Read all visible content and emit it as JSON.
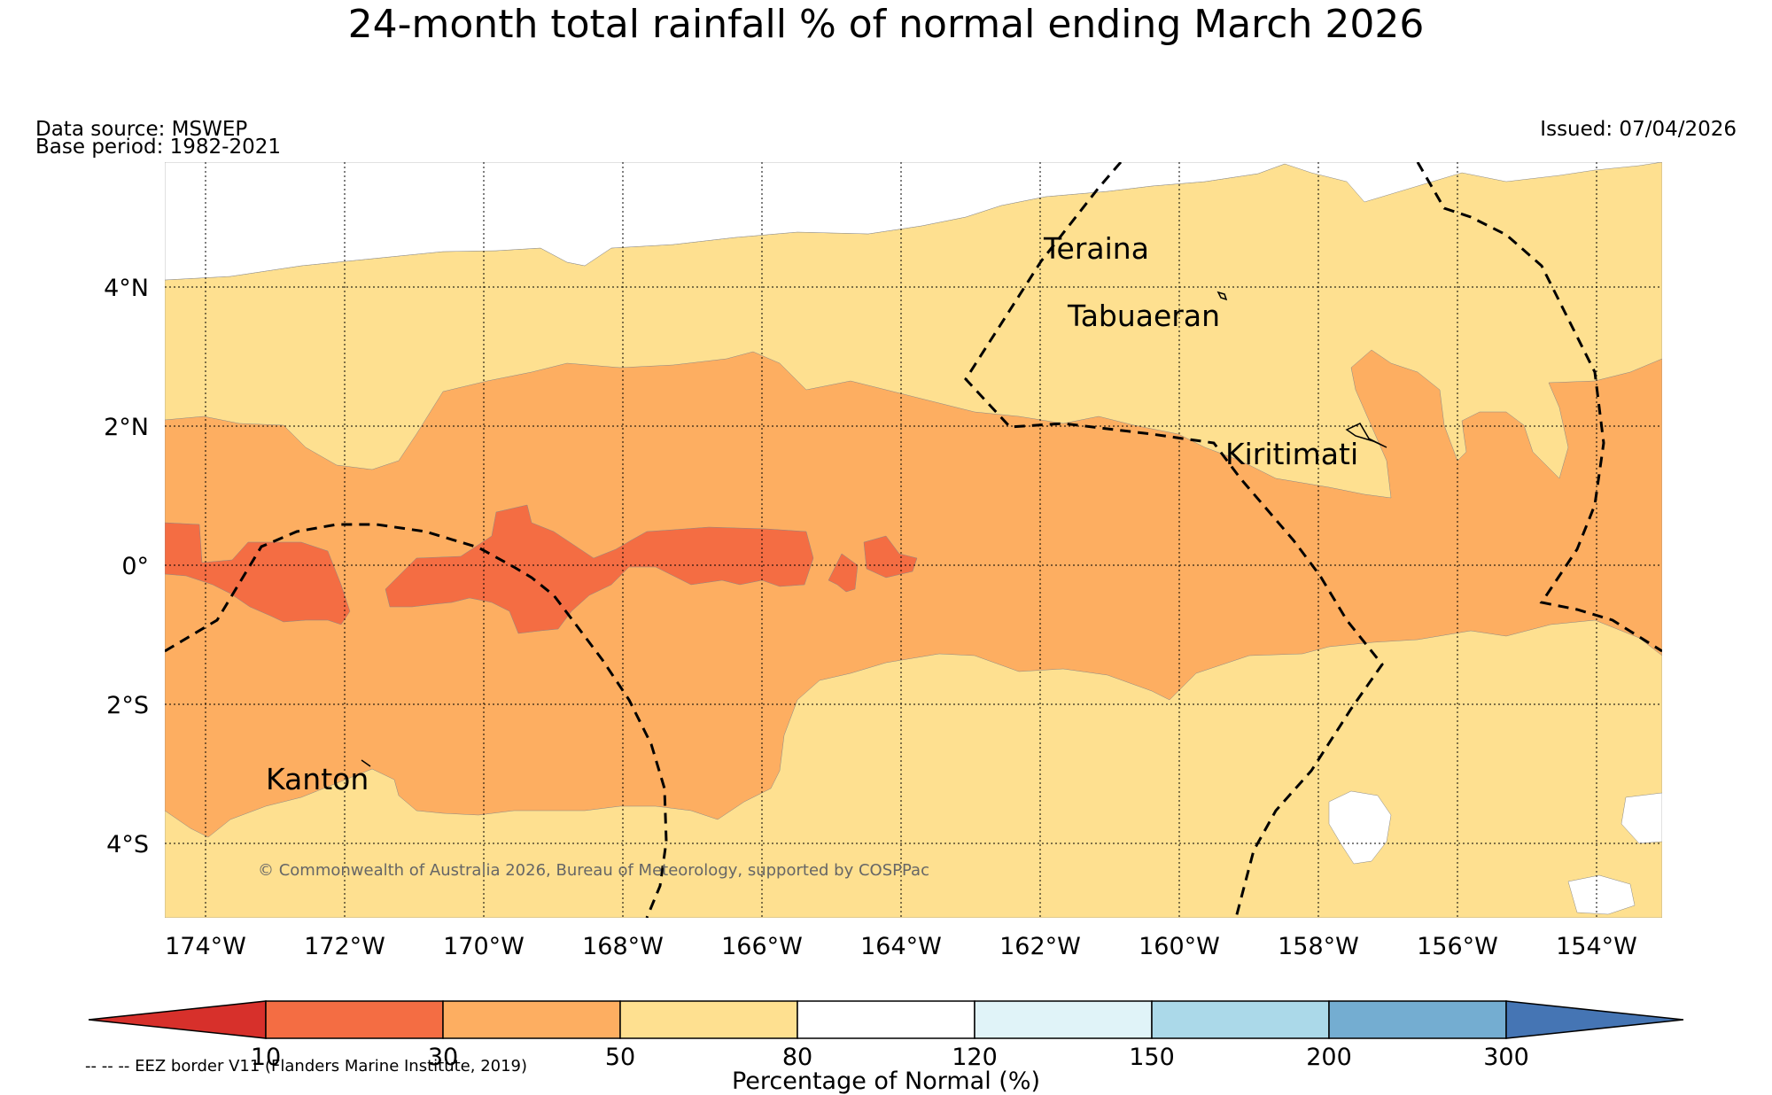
{
  "title": "24-month total rainfall % of normal ending March 2026",
  "data_source": "Data source: MSWEP",
  "base_period": "Base period: 1982-2021",
  "issued": "Issued: 07/04/2026",
  "copyright": "© Commonwealth of Australia 2026, Bureau of Meteorology, supported by COSPPac",
  "places": [
    "Teraina",
    "Tabuaeran",
    "Kiritimati",
    "Kanton"
  ],
  "lat_labels": [
    "4°N",
    "2°N",
    "0°",
    "2°S",
    "4°S"
  ],
  "lon_labels": [
    "174°W",
    "172°W",
    "170°W",
    "168°W",
    "166°W",
    "164°W",
    "162°W",
    "160°W",
    "158°W",
    "156°W",
    "154°W"
  ],
  "legend": {
    "ticks": [
      "10",
      "30",
      "50",
      "80",
      "120",
      "150",
      "200",
      "300"
    ],
    "label": "Percentage of Normal (%)",
    "colors": [
      "#d7302b",
      "#f46d43",
      "#fdae61",
      "#fee090",
      "#ffffff",
      "#e0f3f8",
      "#abd9e9",
      "#74add1",
      "#4575b4"
    ]
  },
  "eez_note": "-- -- -- EEZ border V11 (Flanders Marine Institute, 2019)"
}
